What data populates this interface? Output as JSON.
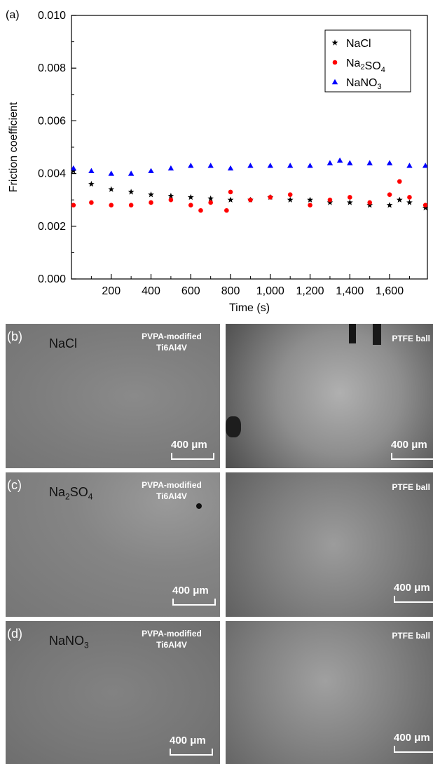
{
  "chart_data": {
    "type": "scatter",
    "panel_label": "(a)",
    "xlabel": "Time (s)",
    "ylabel": "Friction coefficient",
    "xlim": [
      0,
      1790
    ],
    "ylim": [
      0,
      0.01
    ],
    "xticks": [
      200,
      400,
      600,
      800,
      1000,
      1200,
      1400,
      1600
    ],
    "xtick_labels": [
      "200",
      "400",
      "600",
      "800",
      "1,000",
      "1,200",
      "1,400",
      "1,600"
    ],
    "yticks": [
      0,
      0.002,
      0.004,
      0.006,
      0.008,
      0.01
    ],
    "ytick_labels": [
      "0.000",
      "0.002",
      "0.004",
      "0.006",
      "0.008",
      "0.010"
    ],
    "legend_position": "top-right",
    "series": [
      {
        "name": "NaCl",
        "legend_base": "NaCl",
        "legend_sub": "",
        "marker": "star",
        "color": "#000000",
        "x": [
          10,
          100,
          200,
          300,
          400,
          500,
          600,
          700,
          800,
          900,
          1000,
          1100,
          1200,
          1300,
          1400,
          1500,
          1600,
          1650,
          1700,
          1780
        ],
        "y": [
          0.0041,
          0.0036,
          0.0034,
          0.0033,
          0.0032,
          0.00315,
          0.0031,
          0.00305,
          0.003,
          0.003,
          0.0031,
          0.003,
          0.003,
          0.0029,
          0.0029,
          0.0028,
          0.0028,
          0.003,
          0.0029,
          0.0027
        ]
      },
      {
        "name": "Na2SO4",
        "legend_base": "Na",
        "legend_sub": "2",
        "legend_rest": "SO",
        "legend_sub2": "4",
        "marker": "circle",
        "color": "#ff0000",
        "x": [
          10,
          100,
          200,
          300,
          400,
          500,
          600,
          650,
          700,
          780,
          800,
          900,
          1000,
          1100,
          1200,
          1300,
          1400,
          1500,
          1600,
          1650,
          1700,
          1780
        ],
        "y": [
          0.0028,
          0.0029,
          0.0028,
          0.0028,
          0.0029,
          0.003,
          0.0028,
          0.0026,
          0.0029,
          0.0026,
          0.0033,
          0.003,
          0.0031,
          0.0032,
          0.0028,
          0.003,
          0.0031,
          0.0029,
          0.0032,
          0.0037,
          0.0031,
          0.0028
        ]
      },
      {
        "name": "NaNO3",
        "legend_base": "NaNO",
        "legend_sub": "3",
        "marker": "triangle",
        "color": "#0000ff",
        "x": [
          10,
          100,
          200,
          300,
          400,
          500,
          600,
          700,
          800,
          900,
          1000,
          1100,
          1200,
          1300,
          1350,
          1400,
          1500,
          1600,
          1700,
          1780
        ],
        "y": [
          0.0042,
          0.0041,
          0.004,
          0.004,
          0.0041,
          0.0042,
          0.0043,
          0.0043,
          0.0042,
          0.0043,
          0.0043,
          0.0043,
          0.0043,
          0.0044,
          0.0045,
          0.0044,
          0.0044,
          0.0044,
          0.0043,
          0.0043
        ]
      }
    ]
  },
  "panels": [
    {
      "label": "(b)",
      "ion_base": "NaCl",
      "ion_sub": "",
      "ion_rest": "",
      "sample_line1": "PVPA-modified",
      "sample_line2": "Ti6Al4V",
      "ball": "PTFE ball",
      "scale": "400 μm",
      "scale_right": "400 μm"
    },
    {
      "label": "(c)",
      "ion_base": "Na",
      "ion_sub": "2",
      "ion_rest": "SO",
      "ion_sub2": "4",
      "sample_line1": "PVPA-modified",
      "sample_line2": "Ti6Al4V",
      "ball": "PTFE ball",
      "scale": "400 μm",
      "scale_right": "400 μm"
    },
    {
      "label": "(d)",
      "ion_base": "NaNO",
      "ion_sub": "3",
      "ion_rest": "",
      "sample_line1": "PVPA-modified",
      "sample_line2": "Ti6Al4V",
      "ball": "PTFE ball",
      "scale": "400 μm",
      "scale_right": "400 μm"
    }
  ]
}
